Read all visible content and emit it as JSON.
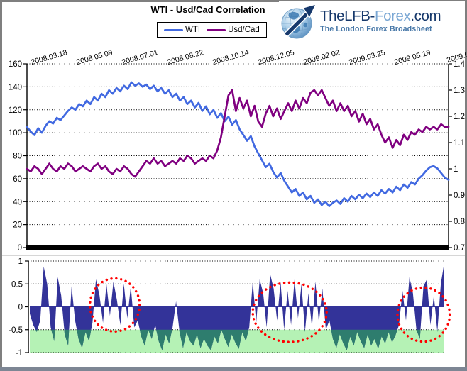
{
  "header": {
    "title": "WTI - Usd/Cad Correlation",
    "legend": [
      {
        "label": "WTI",
        "color": "#4169e1"
      },
      {
        "label": "Usd/Cad",
        "color": "#800080"
      }
    ]
  },
  "logo": {
    "icon": "globe-arrow-icon",
    "brand_main": "TheLFB-",
    "brand_accent": "Forex",
    "brand_suffix": ".com",
    "tagline": "The London Forex Broadsheet",
    "colors": {
      "navy": "#16386b",
      "accent": "#7aa7d4",
      "tagline": "#4878a8"
    }
  },
  "chart_data": [
    {
      "type": "line",
      "title": "WTI - Usd/Cad Correlation",
      "grid": "dotted-horizontal",
      "x_tick_labels": [
        "2008.03.18",
        "2008.05.09",
        "2008.07.01",
        "2008.08.22",
        "2008.10.14",
        "2008.12.05",
        "2009.02.02",
        "2009.03.25",
        "2009.05.19",
        "2009.0"
      ],
      "left_axis": {
        "labels": [
          "160",
          "140",
          "120",
          "100",
          "80",
          "60",
          "40",
          "20",
          "0"
        ],
        "values": [
          160,
          140,
          120,
          100,
          80,
          60,
          40,
          20,
          0
        ],
        "range": [
          0,
          160
        ]
      },
      "right_axis": {
        "labels": [
          "1.4",
          "1.3",
          "1.2",
          "1.1",
          "1",
          "0.9",
          "0.8",
          "0.7"
        ],
        "values": [
          1.4,
          1.3,
          1.2,
          1.1,
          1.0,
          0.9,
          0.8,
          0.7
        ],
        "range": [
          0.7,
          1.4
        ]
      },
      "zero_baseline": {
        "value": 0,
        "style": "thick-black-bar"
      },
      "series": [
        {
          "name": "WTI",
          "axis": "left",
          "color": "#4169e1",
          "values": [
            105,
            101,
            98,
            104,
            100,
            106,
            110,
            108,
            113,
            111,
            115,
            119,
            122,
            120,
            125,
            123,
            128,
            125,
            131,
            128,
            134,
            131,
            137,
            134,
            139,
            136,
            141,
            138,
            144,
            141,
            143,
            140,
            142,
            138,
            141,
            136,
            139,
            134,
            137,
            131,
            134,
            128,
            131,
            125,
            128,
            122,
            126,
            119,
            123,
            116,
            120,
            113,
            117,
            110,
            114,
            107,
            111,
            103,
            98,
            93,
            97,
            88,
            82,
            76,
            70,
            73,
            66,
            61,
            65,
            58,
            53,
            48,
            51,
            45,
            48,
            42,
            45,
            39,
            42,
            37,
            40,
            36,
            39,
            41,
            38,
            43,
            40,
            45,
            42,
            46,
            43,
            47,
            44,
            48,
            45,
            50,
            47,
            51,
            48,
            53,
            50,
            55,
            52,
            57,
            55,
            60,
            63,
            67,
            70,
            71,
            69,
            65,
            61,
            59
          ]
        },
        {
          "name": "Usd/Cad",
          "axis": "right",
          "color": "#800080",
          "values": [
            1.0,
            0.99,
            1.01,
            1.0,
            0.98,
            1.0,
            1.02,
            1.0,
            0.99,
            1.01,
            1.0,
            1.02,
            1.01,
            0.99,
            1.0,
            1.01,
            1.0,
            0.99,
            1.01,
            1.02,
            1.0,
            1.01,
            0.99,
            0.98,
            1.0,
            0.99,
            1.01,
            1.0,
            0.98,
            0.97,
            0.99,
            1.01,
            1.03,
            1.02,
            1.04,
            1.02,
            1.03,
            1.01,
            1.02,
            1.03,
            1.02,
            1.04,
            1.03,
            1.05,
            1.04,
            1.02,
            1.03,
            1.04,
            1.03,
            1.05,
            1.04,
            1.07,
            1.12,
            1.2,
            1.28,
            1.3,
            1.22,
            1.27,
            1.23,
            1.26,
            1.2,
            1.24,
            1.18,
            1.16,
            1.21,
            1.24,
            1.2,
            1.23,
            1.19,
            1.22,
            1.25,
            1.22,
            1.26,
            1.23,
            1.27,
            1.25,
            1.29,
            1.3,
            1.28,
            1.3,
            1.27,
            1.24,
            1.26,
            1.22,
            1.25,
            1.22,
            1.24,
            1.2,
            1.22,
            1.18,
            1.21,
            1.17,
            1.19,
            1.15,
            1.17,
            1.13,
            1.1,
            1.12,
            1.08,
            1.11,
            1.09,
            1.13,
            1.11,
            1.14,
            1.13,
            1.15,
            1.14,
            1.16,
            1.15,
            1.16,
            1.15,
            1.17,
            1.16,
            1.16
          ]
        }
      ]
    },
    {
      "type": "area",
      "name": "WTI vs Usd/Cad rolling correlation",
      "ylim": [
        -1,
        1
      ],
      "y_ticks": {
        "labels": [
          "1",
          "0.5",
          "0",
          "-0.5",
          "-1"
        ],
        "values": [
          1,
          0.5,
          0,
          -0.5,
          -1
        ]
      },
      "area_color": "#333399",
      "zero_line_color": "#333399",
      "band": {
        "from": -0.5,
        "to": -1,
        "color": "#b5f2b5",
        "overlap_color": "#2e7d6e"
      },
      "ellipse_style": {
        "color": "#ff0000",
        "pattern": "dotted"
      },
      "highlight_ellipses": [
        {
          "cx_t": 0.205,
          "cy_value": 0.04,
          "rx_t": 0.06,
          "ry_value": 0.58
        },
        {
          "cx_t": 0.627,
          "cy_value": -0.12,
          "rx_t": 0.089,
          "ry_value": 0.65
        },
        {
          "cx_t": 0.95,
          "cy_value": -0.17,
          "rx_t": 0.063,
          "ry_value": 0.59
        }
      ],
      "values": [
        -0.15,
        -0.4,
        -0.55,
        -0.3,
        0.88,
        0.5,
        -0.45,
        -0.75,
        0.65,
        0.25,
        -0.6,
        -0.85,
        0.45,
        -0.3,
        -0.7,
        -0.9,
        -0.55,
        -0.75,
        -0.35,
        0.6,
        0.25,
        -0.35,
        0.5,
        -0.2,
        0.55,
        0.15,
        -0.4,
        0.5,
        -0.25,
        0.45,
        -0.45,
        -0.3,
        -0.65,
        -0.85,
        -0.5,
        -0.7,
        -0.4,
        -0.75,
        -0.95,
        -0.6,
        -0.8,
        -0.45,
        0.12,
        -0.55,
        -0.9,
        -0.55,
        -0.75,
        -0.85,
        -0.6,
        -0.9,
        -0.7,
        -0.85,
        -0.95,
        -0.65,
        -0.8,
        -0.5,
        -0.7,
        -0.88,
        -0.6,
        -0.78,
        -0.92,
        -0.55,
        -0.75,
        -0.45,
        0.55,
        -0.35,
        0.6,
        0.3,
        -0.45,
        0.72,
        0.4,
        -0.3,
        0.55,
        -0.5,
        0.35,
        -0.4,
        0.6,
        -0.25,
        0.5,
        -0.55,
        0.3,
        -0.45,
        0.55,
        -0.35,
        0.4,
        -0.5,
        -0.3,
        -0.7,
        -0.9,
        -0.6,
        -0.8,
        -0.95,
        -0.65,
        -0.85,
        -0.55,
        -0.75,
        -0.9,
        -0.6,
        -0.85,
        -0.7,
        -0.92,
        -0.65,
        -0.8,
        -0.55,
        -0.78,
        -0.62,
        -0.4,
        0.35,
        -0.3,
        0.65,
        0.3,
        -0.5,
        -0.7,
        0.45,
        0.6,
        -0.4,
        0.25,
        -0.55,
        0.5,
        0.97
      ]
    }
  ]
}
